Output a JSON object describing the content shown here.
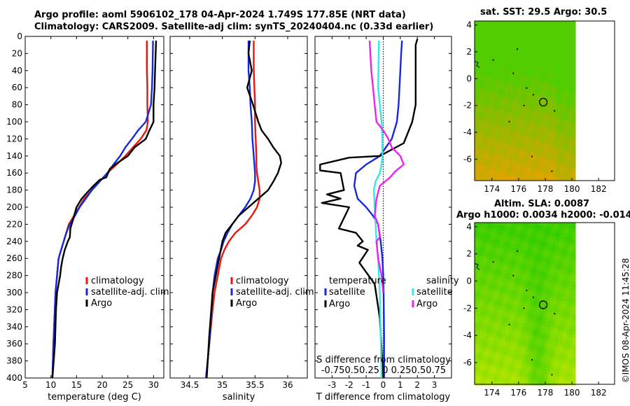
{
  "header": {
    "line1": "Argo profile: aoml 5906102_178 04-Apr-2024 1.749S 177.85E (NRT data)",
    "line2": "Climatology: CARS2009. Satellite-adj clim: synTS_20240404.nc (0.33d earlier)",
    "sst_title": "sat. SST: 29.5 Argo: 30.5",
    "sla_title1": "Altim. SLA: 0.0087",
    "sla_title2": "Argo h1000: 0.0034 h2000: -0.014",
    "watermark": "©IMOS 08-Apr-2024 11:45:28"
  },
  "colors": {
    "climatology": "#e8160c",
    "satellite": "#1428e0",
    "argo": "#000000",
    "sat_salinity": "#36e6e6",
    "argo_salinity": "#ee22ee"
  },
  "chart_data": [
    {
      "type": "line",
      "name": "temperature-profile",
      "xlabel": "temperature (deg C)",
      "ylabel": "",
      "xlim": [
        5,
        32
      ],
      "ylim": [
        400,
        0
      ],
      "xticks": [
        5,
        10,
        15,
        20,
        25,
        30
      ],
      "yticks": [
        0,
        20,
        40,
        60,
        80,
        100,
        120,
        140,
        160,
        180,
        200,
        220,
        240,
        260,
        280,
        300,
        320,
        340,
        360,
        380,
        400
      ],
      "legend": [
        "climatology",
        "satellite-adj. clim",
        "Argo"
      ],
      "series": [
        {
          "name": "climatology",
          "color": "#e8160c",
          "x": [
            28.7,
            28.7,
            28.8,
            28.8,
            28.9,
            28.6,
            27.5,
            26.0,
            24.5,
            22.8,
            21.0,
            19.5,
            18.0,
            16.5,
            15.5,
            14.5,
            13.5,
            13.0,
            12.5,
            12.0,
            11.5,
            11.2,
            10.9,
            10.7,
            10.5,
            10.3
          ],
          "y": [
            5,
            40,
            60,
            80,
            100,
            110,
            120,
            130,
            140,
            150,
            160,
            170,
            180,
            190,
            200,
            210,
            220,
            230,
            240,
            250,
            260,
            280,
            300,
            330,
            360,
            400
          ]
        },
        {
          "name": "satellite-adj. clim",
          "color": "#1428e0",
          "x": [
            29.9,
            29.8,
            29.7,
            29.5,
            28.5,
            27.0,
            25.8,
            24.5,
            23.5,
            22.2,
            21.0,
            19.5,
            18.0,
            16.8,
            15.6,
            14.7,
            13.7,
            13.0,
            12.5,
            12.0,
            11.5,
            11.2,
            10.9,
            10.7,
            10.5,
            10.3
          ],
          "y": [
            5,
            40,
            60,
            80,
            100,
            110,
            120,
            130,
            140,
            150,
            160,
            170,
            180,
            190,
            200,
            210,
            220,
            230,
            240,
            250,
            260,
            280,
            300,
            330,
            360,
            400
          ]
        },
        {
          "name": "Argo",
          "color": "#000000",
          "x": [
            30.5,
            30.3,
            30.2,
            30.0,
            30.0,
            29.2,
            28.5,
            26.3,
            25.0,
            23.0,
            21.5,
            20.8,
            19.5,
            18.3,
            17.5,
            16.0,
            15.0,
            14.3,
            13.8,
            13.7,
            13.3,
            12.7,
            12.3,
            12.0,
            11.8,
            11.2,
            11.0,
            10.8,
            10.3
          ],
          "y": [
            5,
            40,
            60,
            80,
            100,
            110,
            120,
            130,
            140,
            148,
            155,
            165,
            168,
            175,
            180,
            190,
            200,
            215,
            225,
            235,
            240,
            250,
            260,
            270,
            280,
            300,
            320,
            360,
            400
          ]
        }
      ]
    },
    {
      "type": "line",
      "name": "salinity-profile",
      "xlabel": "salinity",
      "ylabel": "",
      "xlim": [
        34.2,
        36.3
      ],
      "ylim": [
        400,
        0
      ],
      "xticks": [
        34.5,
        35,
        35.5,
        36
      ],
      "legend": [
        "climatology",
        "satellite-adj. clim",
        "Argo"
      ],
      "series": [
        {
          "name": "climatology",
          "color": "#e8160c",
          "x": [
            35.48,
            35.48,
            35.49,
            35.5,
            35.5,
            35.51,
            35.52,
            35.52,
            35.53,
            35.55,
            35.57,
            35.57,
            35.53,
            35.45,
            35.35,
            35.2,
            35.1,
            35.03,
            34.98,
            34.93,
            34.88,
            34.85,
            34.8,
            34.75
          ],
          "y": [
            5,
            40,
            60,
            80,
            100,
            120,
            140,
            150,
            160,
            170,
            180,
            190,
            200,
            210,
            220,
            230,
            240,
            250,
            260,
            280,
            300,
            320,
            360,
            400
          ]
        },
        {
          "name": "satellite-adj. clim",
          "color": "#1428e0",
          "x": [
            35.4,
            35.4,
            35.42,
            35.43,
            35.45,
            35.46,
            35.48,
            35.5,
            35.5,
            35.48,
            35.43,
            35.35,
            35.25,
            35.15,
            35.08,
            35.02,
            34.98,
            34.93,
            34.88,
            34.85,
            34.8,
            34.75
          ],
          "y": [
            5,
            40,
            60,
            80,
            100,
            120,
            140,
            160,
            170,
            180,
            190,
            200,
            210,
            220,
            230,
            240,
            250,
            260,
            280,
            300,
            360,
            400
          ]
        },
        {
          "name": "Argo",
          "color": "#000000",
          "x": [
            35.42,
            35.4,
            35.45,
            35.38,
            35.47,
            35.55,
            35.6,
            35.7,
            35.78,
            35.88,
            35.9,
            35.85,
            35.78,
            35.7,
            35.55,
            35.4,
            35.25,
            35.15,
            35.05,
            35.0,
            34.95,
            34.9,
            34.85,
            34.8,
            34.76
          ],
          "y": [
            5,
            20,
            40,
            60,
            80,
            100,
            110,
            120,
            130,
            140,
            148,
            160,
            170,
            180,
            190,
            200,
            210,
            220,
            230,
            240,
            260,
            280,
            300,
            350,
            400
          ]
        }
      ]
    },
    {
      "type": "line",
      "name": "difference-profile",
      "xlabel": "T difference from climatology",
      "xlabel_top": "S difference from climatology",
      "xlim": [
        -4,
        4
      ],
      "ylim": [
        400,
        0
      ],
      "xticks": [
        -3,
        -2,
        -1,
        0,
        1,
        2,
        3
      ],
      "s_axis_ticks": "-0.750.50.25 0 0.250.50.75",
      "legend_temperature_title": "temperature",
      "legend_salinity_title": "salinity",
      "legend": [
        "satellite",
        "Argo",
        "satellite",
        "Argo"
      ],
      "series": [
        {
          "name": "temperature satellite",
          "color": "#1428e0",
          "x": [
            1.1,
            1.05,
            1.0,
            0.95,
            0.9,
            0.8,
            0.5,
            -0.2,
            -1.0,
            -1.6,
            -1.7,
            -1.5,
            -1.0,
            -0.6,
            -0.3,
            -0.15,
            -0.05,
            0.0,
            0.02,
            0.05,
            0.05
          ],
          "y": [
            5,
            20,
            40,
            60,
            80,
            100,
            120,
            140,
            150,
            160,
            175,
            190,
            200,
            210,
            220,
            240,
            260,
            280,
            300,
            350,
            400
          ]
        },
        {
          "name": "temperature Argo",
          "color": "#000000",
          "x": [
            2.0,
            1.9,
            1.9,
            1.9,
            1.9,
            1.7,
            1.5,
            1.2,
            -0.2,
            -2.0,
            -3.7,
            -3.7,
            -2.5,
            -2.3,
            -3.3,
            -2.5,
            -3.6,
            -2.0,
            -2.6,
            -1.6,
            -1.2,
            -1.5,
            -0.9,
            -1.4,
            -0.5,
            -0.2,
            0.0
          ],
          "y": [
            3,
            10,
            40,
            60,
            80,
            100,
            110,
            125,
            140,
            142,
            150,
            157,
            160,
            180,
            185,
            190,
            195,
            200,
            225,
            230,
            240,
            245,
            250,
            265,
            290,
            330,
            400
          ]
        },
        {
          "name": "salinity satellite",
          "color": "#36e6e6",
          "x": [
            -0.25,
            -0.3,
            -0.2,
            -0.1,
            -0.05,
            -0.05,
            -0.1,
            -0.2,
            -0.45,
            -0.55,
            -0.5,
            -0.45,
            -0.4,
            -0.3,
            -0.2,
            -0.1
          ],
          "y": [
            5,
            60,
            80,
            100,
            120,
            140,
            150,
            160,
            170,
            180,
            200,
            220,
            240,
            260,
            300,
            400
          ]
        },
        {
          "name": "salinity Argo",
          "color": "#ee22ee",
          "x": [
            -0.8,
            -0.7,
            -0.6,
            -0.5,
            -0.4,
            0.0,
            0.3,
            0.5,
            1.0,
            1.2,
            0.7,
            0.4,
            -0.2,
            -0.4,
            -0.5,
            -0.3,
            -0.2,
            -0.4,
            -0.3,
            -0.1,
            0.0
          ],
          "y": [
            5,
            40,
            60,
            80,
            100,
            110,
            120,
            130,
            140,
            150,
            158,
            165,
            175,
            190,
            210,
            220,
            235,
            240,
            260,
            280,
            300
          ]
        }
      ]
    },
    {
      "type": "heatmap",
      "name": "sst-map",
      "title": "sat. SST: 29.5 Argo: 30.5",
      "xticks": [
        174,
        176,
        178,
        180,
        182
      ],
      "yticks": [
        4,
        2,
        0,
        -2,
        -4,
        -6
      ],
      "xlim": [
        172.7,
        183.2
      ],
      "ylim": [
        -7.6,
        4.3
      ],
      "argo_position": {
        "lon": 177.85,
        "lat": -1.749
      }
    },
    {
      "type": "heatmap",
      "name": "sla-map",
      "title": "Altim. SLA: 0.0087",
      "xticks": [
        174,
        176,
        178,
        180,
        182
      ],
      "yticks": [
        4,
        2,
        0,
        -2,
        -4,
        -6
      ],
      "xlim": [
        172.7,
        183.2
      ],
      "ylim": [
        -7.6,
        4.3
      ],
      "argo_position": {
        "lon": 177.85,
        "lat": -1.749
      }
    }
  ]
}
